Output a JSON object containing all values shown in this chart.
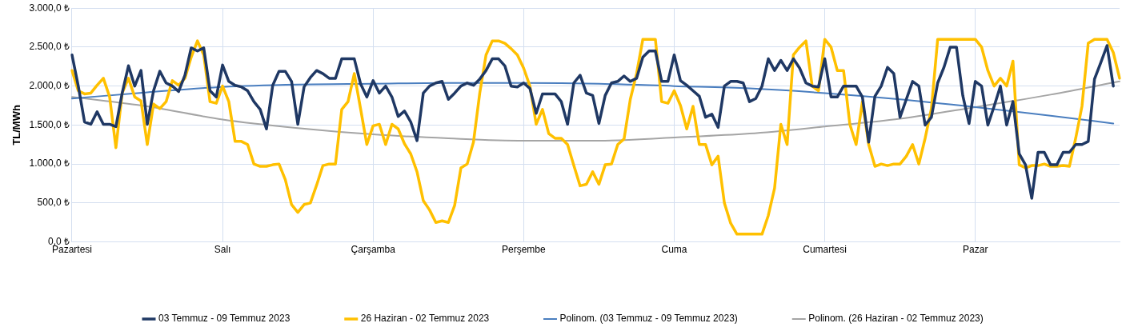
{
  "chart_data": {
    "type": "line",
    "ylabel": "TL/MWh",
    "categories": [
      "Pazartesi",
      null,
      null,
      null,
      null,
      null,
      null,
      null,
      null,
      null,
      null,
      null,
      null,
      null,
      null,
      null,
      null,
      null,
      null,
      null,
      null,
      null,
      null,
      null,
      "Salı",
      null,
      null,
      null,
      null,
      null,
      null,
      null,
      null,
      null,
      null,
      null,
      null,
      null,
      null,
      null,
      null,
      null,
      null,
      null,
      null,
      null,
      null,
      null,
      "Çarşamba",
      null,
      null,
      null,
      null,
      null,
      null,
      null,
      null,
      null,
      null,
      null,
      null,
      null,
      null,
      null,
      null,
      null,
      null,
      null,
      null,
      null,
      null,
      null,
      "Perşembe",
      null,
      null,
      null,
      null,
      null,
      null,
      null,
      null,
      null,
      null,
      null,
      null,
      null,
      null,
      null,
      null,
      null,
      null,
      null,
      null,
      null,
      null,
      null,
      "Cuma",
      null,
      null,
      null,
      null,
      null,
      null,
      null,
      null,
      null,
      null,
      null,
      null,
      null,
      null,
      null,
      null,
      null,
      null,
      null,
      null,
      null,
      null,
      null,
      "Cumartesi",
      null,
      null,
      null,
      null,
      null,
      null,
      null,
      null,
      null,
      null,
      null,
      null,
      null,
      null,
      null,
      null,
      null,
      null,
      null,
      null,
      null,
      null,
      null,
      "Pazar",
      null,
      null,
      null,
      null,
      null,
      null,
      null,
      null,
      null,
      null,
      null,
      null,
      null,
      null,
      null,
      null,
      null,
      null,
      null,
      null,
      null,
      null,
      null
    ],
    "ylim": [
      0,
      3000
    ],
    "yticks": [
      {
        "value": 0,
        "label": "0,0 ₺"
      },
      {
        "value": 500,
        "label": "500,0 ₺"
      },
      {
        "value": 1000,
        "label": "1.000,0 ₺"
      },
      {
        "value": 1500,
        "label": "1.500,0 ₺"
      },
      {
        "value": 2000,
        "label": "2.000,0 ₺"
      },
      {
        "value": 2500,
        "label": "2.500,0 ₺"
      },
      {
        "value": 3000,
        "label": "3.000,0 ₺"
      }
    ],
    "grid": true,
    "legend": "bottom",
    "marker": "none",
    "series": [
      {
        "name": "03 Temmuz - 09 Temmuz 2023",
        "color": "#1f3864",
        "values": [
          2400,
          2000,
          1540,
          1510,
          1670,
          1510,
          1510,
          1480,
          1910,
          2260,
          2000,
          2200,
          1510,
          1940,
          2190,
          2040,
          2000,
          1930,
          2140,
          2490,
          2450,
          2490,
          1940,
          1860,
          2270,
          2060,
          2010,
          1990,
          1940,
          1800,
          1700,
          1450,
          2010,
          2190,
          2190,
          2060,
          1510,
          1990,
          2110,
          2200,
          2160,
          2100,
          2100,
          2350,
          2350,
          2350,
          2030,
          1860,
          2070,
          1910,
          2000,
          1860,
          1610,
          1680,
          1540,
          1300,
          1910,
          2000,
          2040,
          2060,
          1830,
          1910,
          2000,
          2040,
          2010,
          2090,
          2200,
          2350,
          2350,
          2260,
          2000,
          1990,
          2040,
          1970,
          1650,
          1900,
          1900,
          1900,
          1800,
          1510,
          2040,
          2140,
          1910,
          1880,
          1520,
          1880,
          2040,
          2060,
          2130,
          2060,
          2100,
          2370,
          2450,
          2450,
          2060,
          2060,
          2400,
          2070,
          2010,
          1940,
          1870,
          1600,
          1640,
          1470,
          2000,
          2060,
          2060,
          2040,
          1800,
          1840,
          2000,
          2350,
          2200,
          2330,
          2200,
          2350,
          2230,
          2040,
          2000,
          1990,
          2350,
          1860,
          1860,
          2000,
          2000,
          2000,
          1860,
          1280,
          1870,
          2000,
          2240,
          2160,
          1600,
          1830,
          2060,
          2000,
          1500,
          1600,
          2040,
          2240,
          2500,
          2500,
          1880,
          1520,
          2060,
          2000,
          1500,
          1740,
          2000,
          1500,
          1800,
          1130,
          990,
          560,
          1150,
          1150,
          990,
          990,
          1150,
          1150,
          1250,
          1250,
          1290,
          2090,
          2300,
          2520,
          2000,
          null
        ]
      },
      {
        "name": "26 Haziran - 02 Temmuz 2023",
        "color": "#ffc000",
        "values": [
          2200,
          1940,
          1900,
          1910,
          2010,
          2100,
          1860,
          1210,
          1910,
          2100,
          1860,
          1810,
          1250,
          1770,
          1710,
          1800,
          2070,
          2010,
          2100,
          2370,
          2580,
          2400,
          1800,
          1780,
          2000,
          1800,
          1290,
          1290,
          1250,
          1000,
          970,
          970,
          990,
          1000,
          800,
          480,
          380,
          480,
          500,
          730,
          980,
          1000,
          1000,
          1700,
          1800,
          2160,
          1710,
          1250,
          1490,
          1510,
          1250,
          1510,
          1450,
          1260,
          1130,
          900,
          530,
          410,
          250,
          270,
          250,
          470,
          950,
          1000,
          1280,
          1910,
          2400,
          2580,
          2580,
          2550,
          2480,
          2400,
          2230,
          2000,
          1510,
          1700,
          1390,
          1330,
          1330,
          1250,
          980,
          720,
          740,
          900,
          740,
          990,
          1000,
          1250,
          1320,
          1830,
          2160,
          2600,
          2600,
          2600,
          1800,
          1780,
          1940,
          1750,
          1450,
          1740,
          1250,
          1250,
          990,
          1100,
          500,
          240,
          100,
          100,
          100,
          100,
          100,
          340,
          690,
          1510,
          1250,
          2400,
          2500,
          2580,
          2000,
          1940,
          2600,
          2500,
          2200,
          2200,
          1510,
          1250,
          1800,
          1250,
          970,
          1000,
          980,
          1000,
          1000,
          1100,
          1250,
          1000,
          1330,
          1710,
          2600,
          2600,
          2600,
          2600,
          2600,
          2600,
          2600,
          2500,
          2200,
          2000,
          2100,
          2000,
          2320,
          990,
          950,
          980,
          980,
          1000,
          970,
          970,
          980,
          970,
          1330,
          1740,
          2550,
          2600,
          2600,
          2600,
          2430,
          2100
        ]
      },
      {
        "name": "Polinom. (03 Temmuz - 09 Temmuz 2023)",
        "color": "#4a7ebf",
        "values": [
          1840,
          null,
          null,
          null,
          null,
          null,
          null,
          null,
          null,
          null,
          null,
          null,
          1920,
          null,
          null,
          null,
          null,
          null,
          null,
          null,
          null,
          null,
          null,
          null,
          1990,
          null,
          null,
          null,
          null,
          null,
          null,
          null,
          null,
          null,
          null,
          null,
          2020,
          null,
          null,
          null,
          null,
          null,
          null,
          null,
          null,
          null,
          null,
          null,
          2030,
          null,
          null,
          null,
          null,
          null,
          null,
          null,
          null,
          null,
          null,
          null,
          2040,
          null,
          null,
          null,
          null,
          null,
          null,
          null,
          null,
          null,
          null,
          null,
          2040,
          null,
          null,
          null,
          null,
          null,
          null,
          null,
          null,
          null,
          null,
          null,
          2030,
          null,
          null,
          null,
          null,
          null,
          null,
          null,
          null,
          null,
          null,
          null,
          2000,
          null,
          null,
          null,
          null,
          null,
          null,
          null,
          null,
          null,
          null,
          null,
          1970,
          null,
          null,
          null,
          null,
          null,
          null,
          null,
          null,
          null,
          null,
          null,
          1910,
          null,
          null,
          null,
          null,
          null,
          null,
          null,
          null,
          null,
          null,
          null,
          1830,
          null,
          null,
          null,
          null,
          null,
          null,
          null,
          null,
          null,
          null,
          null,
          1730,
          null,
          null,
          null,
          null,
          null,
          null,
          null,
          null,
          null,
          null,
          null,
          1620,
          null,
          null,
          null,
          null,
          null,
          null,
          null,
          null,
          null,
          1520,
          null
        ]
      },
      {
        "name": "Polinom. (26 Haziran - 02 Temmuz 2023)",
        "color": "#a5a5a5",
        "values": [
          1860,
          null,
          null,
          null,
          null,
          null,
          null,
          null,
          null,
          null,
          null,
          null,
          1740,
          null,
          null,
          null,
          null,
          null,
          null,
          null,
          null,
          null,
          null,
          null,
          1570,
          null,
          null,
          null,
          null,
          null,
          null,
          null,
          null,
          null,
          null,
          null,
          1460,
          null,
          null,
          null,
          null,
          null,
          null,
          null,
          null,
          null,
          null,
          null,
          1380,
          null,
          null,
          null,
          null,
          null,
          null,
          null,
          null,
          null,
          null,
          null,
          1330,
          null,
          null,
          null,
          null,
          null,
          null,
          null,
          null,
          null,
          null,
          null,
          1300,
          null,
          null,
          null,
          null,
          null,
          null,
          null,
          null,
          null,
          null,
          null,
          1300,
          null,
          null,
          null,
          null,
          null,
          null,
          null,
          null,
          null,
          null,
          null,
          1340,
          null,
          null,
          null,
          null,
          null,
          null,
          null,
          null,
          null,
          null,
          null,
          1390,
          null,
          null,
          null,
          null,
          null,
          null,
          null,
          null,
          null,
          null,
          null,
          1480,
          null,
          null,
          null,
          null,
          null,
          null,
          null,
          null,
          null,
          null,
          null,
          1580,
          null,
          null,
          null,
          null,
          null,
          null,
          null,
          null,
          null,
          null,
          null,
          1730,
          null,
          null,
          null,
          null,
          null,
          null,
          null,
          null,
          null,
          null,
          null,
          1890,
          null,
          null,
          null,
          null,
          null,
          null,
          null,
          null,
          null,
          null,
          2060
        ]
      }
    ]
  }
}
